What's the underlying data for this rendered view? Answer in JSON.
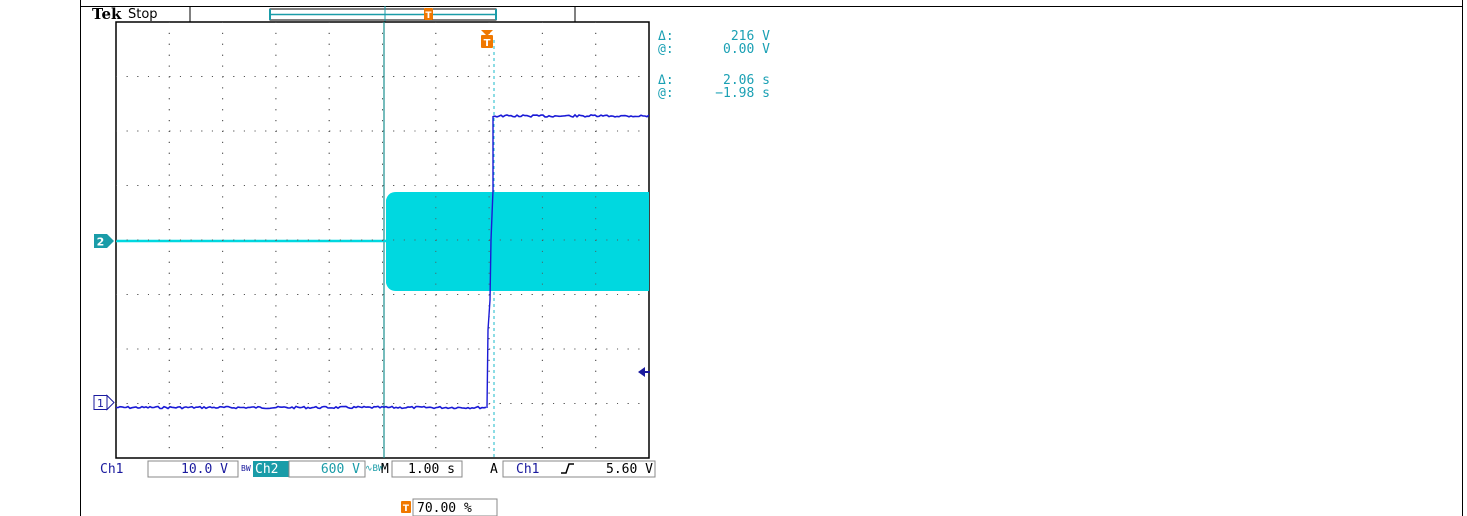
{
  "header": {
    "brand": "Tek",
    "status": "Stop"
  },
  "cursor_readout": {
    "delta_v_symbol": "Δ:",
    "delta_v_value": "216 V",
    "at_v_symbol": "@:",
    "at_v_value": "0.00 V",
    "delta_t_symbol": "Δ:",
    "delta_t_value": "2.06 s",
    "at_t_symbol": "@:",
    "at_t_value": "−1.98 s"
  },
  "channels": {
    "ch1": {
      "label": "Ch1",
      "marker": "1",
      "scale": "10.0 V",
      "color": "#1a1ad6"
    },
    "ch2": {
      "label": "Ch2",
      "marker": "2",
      "scale": "600 V",
      "color": "#00d0dc"
    }
  },
  "bottom_bar": {
    "ch1_label": "Ch1",
    "ch1_scale": "10.0 V",
    "bw1": "BW",
    "ch2_label": "Ch2",
    "ch2_scale": "600 V",
    "bw2": "∿BW",
    "timebase_label": "M",
    "timebase_value": "1.00 s",
    "trigger_label": "A",
    "trigger_source": "Ch1",
    "trigger_slope": "ƒ",
    "trigger_level": "5.60 V"
  },
  "trigger": {
    "marker": "T",
    "position": "70.00 %",
    "color": "#f07800"
  },
  "colors": {
    "grid": "#000000",
    "cursor": "#1a9ca8",
    "trace1": "#1a1ad6",
    "trace2": "#00d8e0",
    "label_blue": "#1a1a9e",
    "readout": "#1aa0b4",
    "ch2_badge_bg": "#1a9ca8"
  }
}
